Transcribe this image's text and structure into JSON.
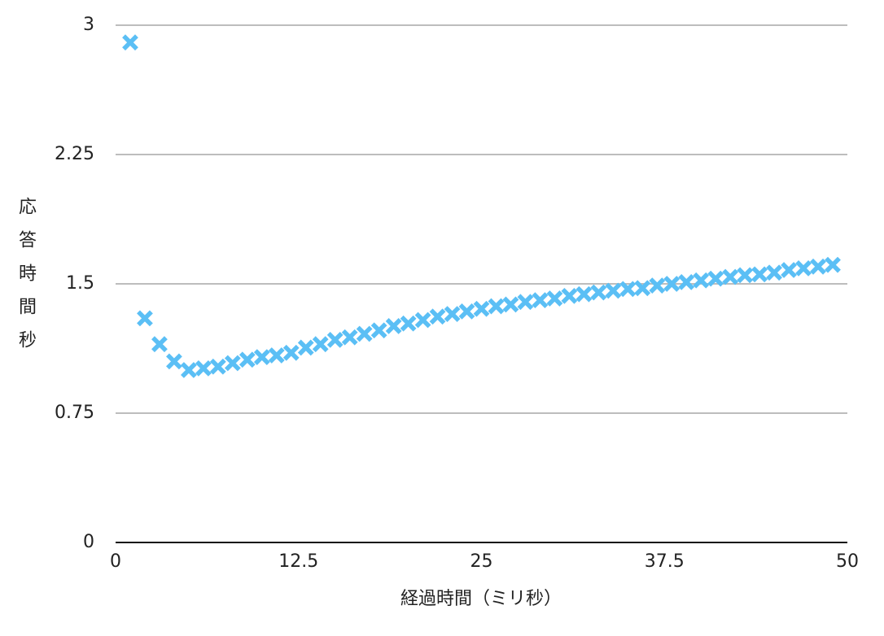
{
  "chart_data": {
    "type": "scatter",
    "xlabel": "経過時間（ミリ秒）",
    "ylabel": "応答時間秒",
    "x": [
      1,
      2,
      3,
      4,
      5,
      6,
      7,
      8,
      9,
      10,
      11,
      12,
      13,
      14,
      15,
      16,
      17,
      18,
      19,
      20,
      21,
      22,
      23,
      24,
      25,
      26,
      27,
      28,
      29,
      30,
      31,
      32,
      33,
      34,
      35,
      36,
      37,
      38,
      39,
      40,
      41,
      42,
      43,
      44,
      45,
      46,
      47,
      48,
      49
    ],
    "values": [
      2.9,
      1.3,
      1.15,
      1.05,
      1.0,
      1.01,
      1.02,
      1.04,
      1.06,
      1.075,
      1.085,
      1.1,
      1.13,
      1.15,
      1.175,
      1.19,
      1.21,
      1.23,
      1.255,
      1.27,
      1.29,
      1.31,
      1.325,
      1.34,
      1.355,
      1.37,
      1.38,
      1.395,
      1.405,
      1.415,
      1.43,
      1.44,
      1.45,
      1.46,
      1.47,
      1.475,
      1.49,
      1.5,
      1.51,
      1.52,
      1.53,
      1.54,
      1.55,
      1.555,
      1.565,
      1.58,
      1.59,
      1.6,
      1.61
    ],
    "color": "#5bbff5",
    "marker": "x",
    "xlim": [
      0,
      50
    ],
    "xticks": [
      0,
      12.5,
      25,
      37.5,
      50
    ],
    "ylim": [
      0,
      3
    ],
    "yticks": [
      0,
      0.75,
      1.5,
      2.25,
      3
    ],
    "grid": true
  }
}
